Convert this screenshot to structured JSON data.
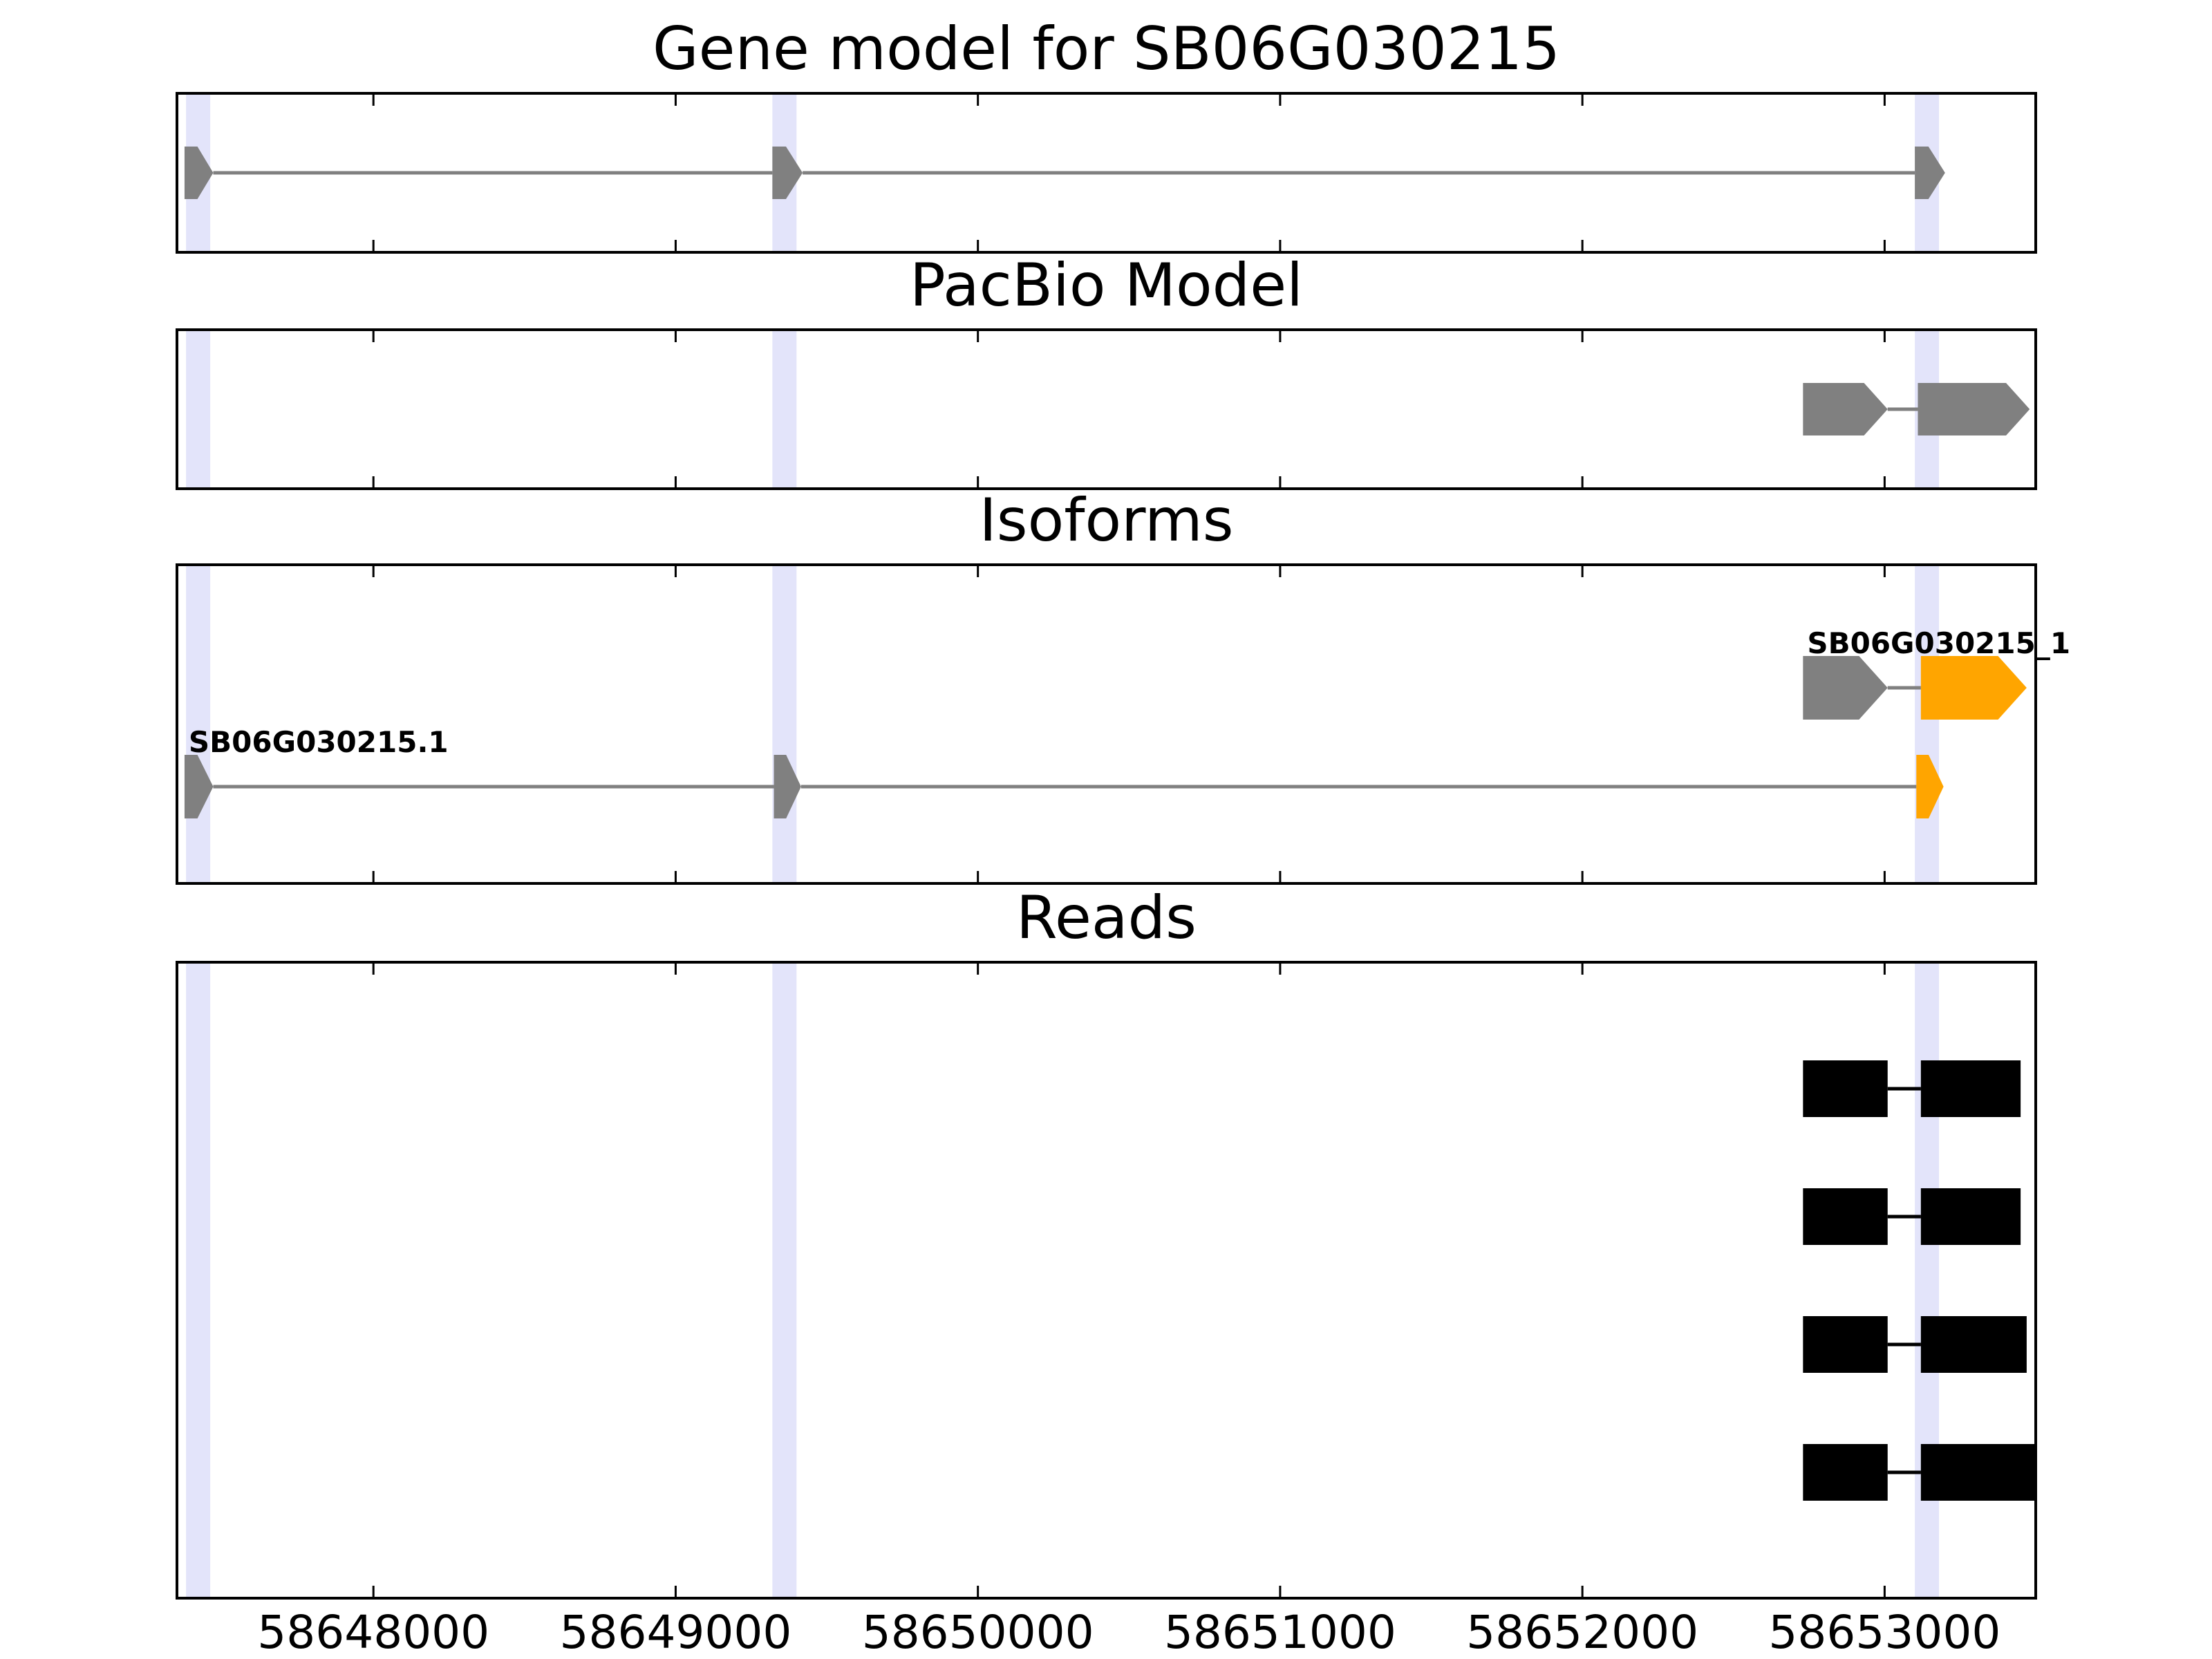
{
  "chart_data": {
    "type": "gene-structure",
    "x_axis": {
      "range": [
        58647350,
        58653500
      ],
      "ticks": [
        58648000,
        58649000,
        58650000,
        58651000,
        58652000,
        58653000
      ],
      "tick_labels": [
        "58648000",
        "58649000",
        "58650000",
        "58651000",
        "58652000",
        "58653000"
      ]
    },
    "exon_highlights": [
      {
        "start": 58647380,
        "end": 58647460
      },
      {
        "start": 58649320,
        "end": 58649400
      },
      {
        "start": 58653100,
        "end": 58653180
      }
    ],
    "colors": {
      "highlight": "#e3e4fa",
      "exon": "#808080",
      "intron": "#808080",
      "isoform_highlight": "#ffa500",
      "read": "#000000",
      "frame": "#000000"
    },
    "panels": [
      {
        "id": "gene-model",
        "title": "Gene model for SB06G030215",
        "rows": 1,
        "tracks": [
          {
            "row": 0,
            "exons": [
              {
                "start": 58647375,
                "end": 58647470,
                "color": "#808080"
              },
              {
                "start": 58649320,
                "end": 58649420,
                "color": "#808080"
              },
              {
                "start": 58653100,
                "end": 58653200,
                "color": "#808080"
              }
            ],
            "arrow": true,
            "intron_color": "#808080"
          }
        ]
      },
      {
        "id": "pacbio-model",
        "title": "PacBio Model",
        "rows": 1,
        "tracks": [
          {
            "row": 0,
            "exons": [
              {
                "start": 58652730,
                "end": 58653010,
                "color": "#808080"
              },
              {
                "start": 58653110,
                "end": 58653480,
                "color": "#808080"
              }
            ],
            "arrow": true,
            "intron_color": "#808080"
          }
        ]
      },
      {
        "id": "isoforms",
        "title": "Isoforms",
        "rows": 2,
        "tracks": [
          {
            "row": 0,
            "label": "SB06G030215_1",
            "exons": [
              {
                "start": 58652730,
                "end": 58653010,
                "color": "#808080"
              },
              {
                "start": 58653120,
                "end": 58653470,
                "color": "#ffa500"
              }
            ],
            "arrow": true,
            "intron_color": "#808080"
          },
          {
            "row": 1,
            "label": "SB06G030215.1",
            "exons": [
              {
                "start": 58647375,
                "end": 58647470,
                "color": "#808080"
              },
              {
                "start": 58649325,
                "end": 58649415,
                "color": "#808080"
              },
              {
                "start": 58653105,
                "end": 58653195,
                "color": "#ffa500"
              }
            ],
            "arrow": true,
            "intron_color": "#808080"
          }
        ]
      },
      {
        "id": "reads",
        "title": "Reads",
        "rows": 4,
        "tracks": [
          {
            "row": 0,
            "exons": [
              {
                "start": 58652730,
                "end": 58653010,
                "color": "#000000"
              },
              {
                "start": 58653120,
                "end": 58653450,
                "color": "#000000"
              }
            ],
            "arrow": false,
            "intron_color": "#000000"
          },
          {
            "row": 1,
            "exons": [
              {
                "start": 58652730,
                "end": 58653010,
                "color": "#000000"
              },
              {
                "start": 58653120,
                "end": 58653450,
                "color": "#000000"
              }
            ],
            "arrow": false,
            "intron_color": "#000000"
          },
          {
            "row": 2,
            "exons": [
              {
                "start": 58652730,
                "end": 58653010,
                "color": "#000000"
              },
              {
                "start": 58653120,
                "end": 58653470,
                "color": "#000000"
              }
            ],
            "arrow": false,
            "intron_color": "#000000"
          },
          {
            "row": 3,
            "exons": [
              {
                "start": 58652730,
                "end": 58653010,
                "color": "#000000"
              },
              {
                "start": 58653120,
                "end": 58653500,
                "color": "#000000"
              }
            ],
            "arrow": false,
            "intron_color": "#000000"
          }
        ]
      }
    ]
  }
}
